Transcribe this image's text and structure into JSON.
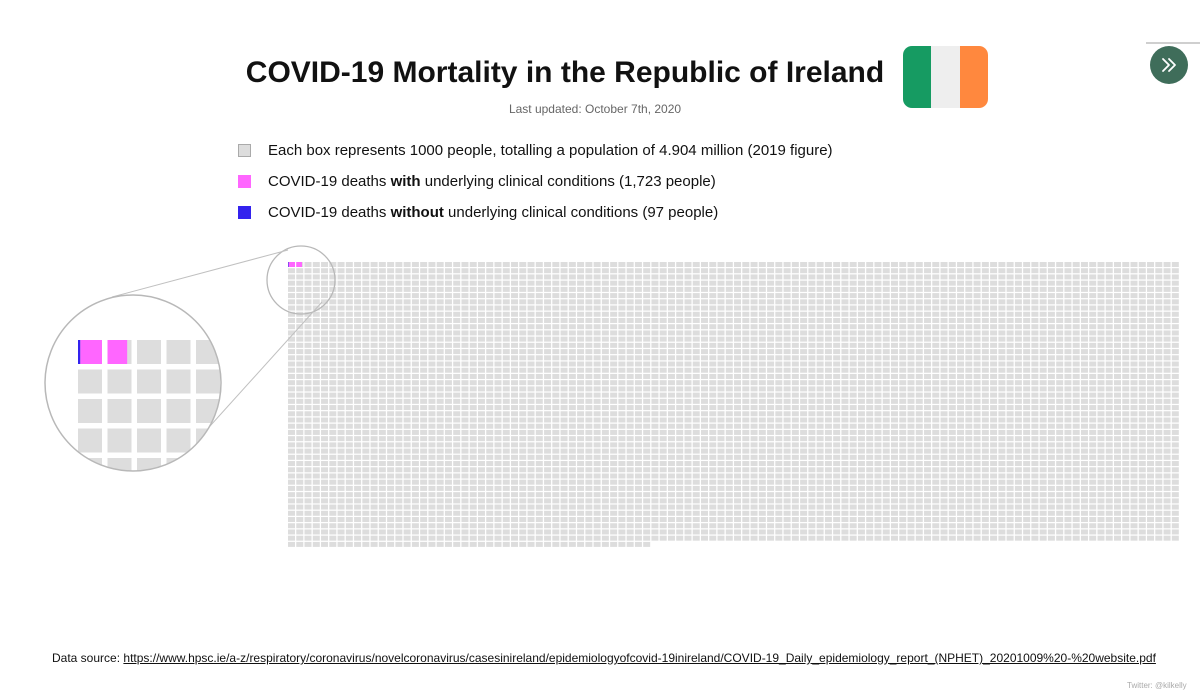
{
  "header": {
    "title": "COVID-19 Mortality in the Republic of Ireland",
    "subtitle": "Last updated: October 7th, 2020"
  },
  "flag": {
    "icon": "ireland-flag-icon",
    "colors": [
      "#169b62",
      "#eeeeee",
      "#ff883e"
    ]
  },
  "nav": {
    "icon": "double-chevron-right-icon",
    "color": "#3f6d5a"
  },
  "legend": [
    {
      "key": "population",
      "color": "#dddddd",
      "text": "Each box represents 1000 people, totalling a population of 4.904 million (2019 figure)"
    },
    {
      "key": "with",
      "color": "#ff66ff",
      "pre": "COVID-19 deaths ",
      "bold": "with",
      "post": " underlying clinical conditions (1,723 people)"
    },
    {
      "key": "without",
      "color": "#3322ee",
      "pre": "COVID-19 deaths ",
      "bold": "without",
      "post": " underlying clinical conditions (97 people)"
    }
  ],
  "chart_data": {
    "type": "waffle",
    "unit_per_box": 1000,
    "total_boxes": 4904,
    "columns": 108,
    "series": [
      {
        "name": "COVID-19 deaths without underlying clinical conditions",
        "value": 97,
        "color": "#3322ee"
      },
      {
        "name": "COVID-19 deaths with underlying clinical conditions",
        "value": 1723,
        "color": "#ff66ff"
      },
      {
        "name": "Population",
        "value": 4904000,
        "color": "#dddddd"
      }
    ]
  },
  "footer": {
    "source_label": "Data source:",
    "source_url": "https://www.hpsc.ie/a-z/respiratory/coronavirus/novelcoronavirus/casesinireland/epidemiologyofcovid-19inireland/COVID-19_Daily_epidemiology_report_(NPHET)_20201009%20-%20website.pdf",
    "credit": "Twitter: @kilkelly"
  }
}
